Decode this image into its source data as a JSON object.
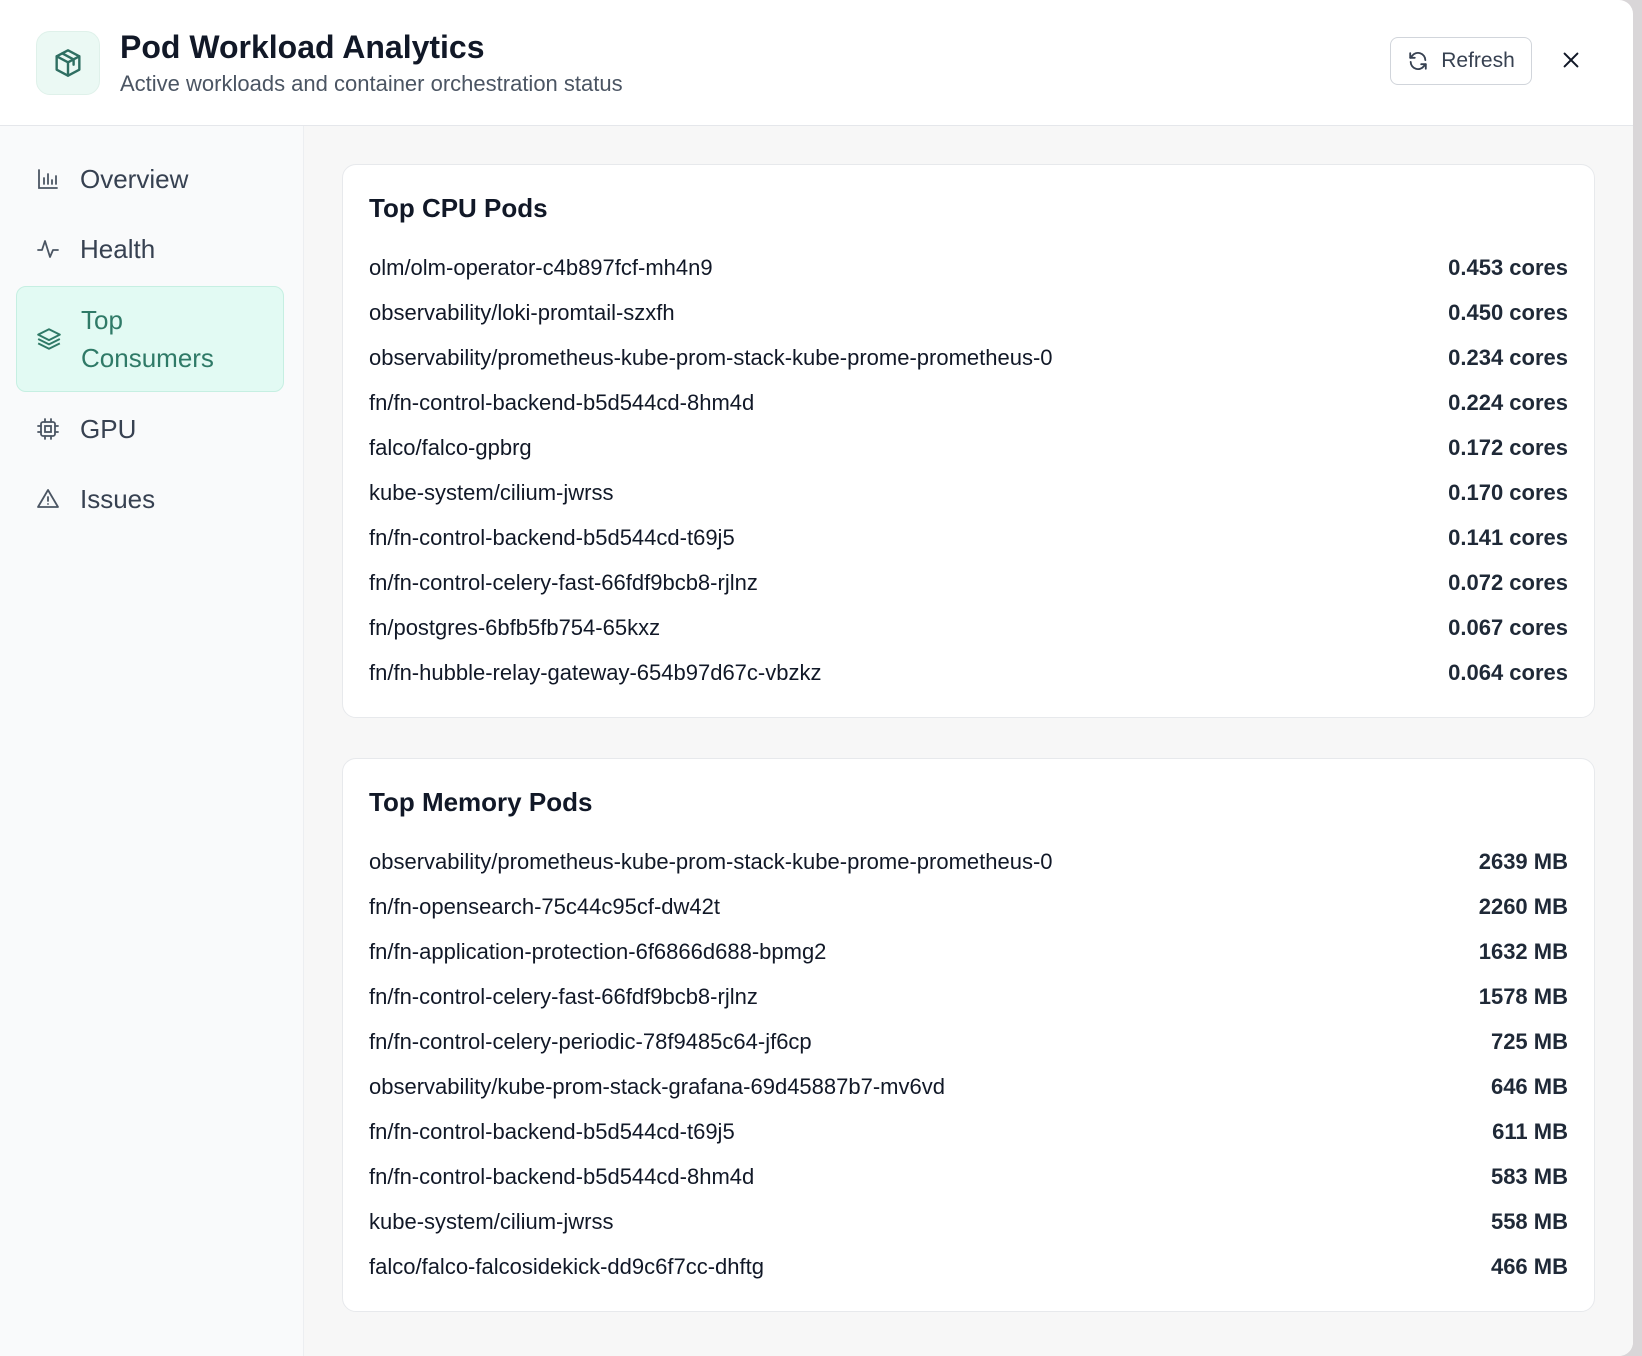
{
  "header": {
    "title": "Pod Workload Analytics",
    "subtitle": "Active workloads and container orchestration status",
    "icon": "package-icon",
    "refresh_label": "Refresh"
  },
  "sidebar": {
    "items": [
      {
        "label": "Overview",
        "icon": "bar-chart-icon",
        "active": false
      },
      {
        "label": "Health",
        "icon": "activity-icon",
        "active": false
      },
      {
        "label": "Top Consumers",
        "icon": "layers-icon",
        "active": true
      },
      {
        "label": "GPU",
        "icon": "cpu-chip-icon",
        "active": false
      },
      {
        "label": "Issues",
        "icon": "warning-triangle-icon",
        "active": false
      }
    ]
  },
  "cpu": {
    "title": "Top CPU Pods",
    "rows": [
      {
        "name": "olm/olm-operator-c4b897fcf-mh4n9",
        "value": "0.453 cores"
      },
      {
        "name": "observability/loki-promtail-szxfh",
        "value": "0.450 cores"
      },
      {
        "name": "observability/prometheus-kube-prom-stack-kube-prome-prometheus-0",
        "value": "0.234 cores"
      },
      {
        "name": "fn/fn-control-backend-b5d544cd-8hm4d",
        "value": "0.224 cores"
      },
      {
        "name": "falco/falco-gpbrg",
        "value": "0.172 cores"
      },
      {
        "name": "kube-system/cilium-jwrss",
        "value": "0.170 cores"
      },
      {
        "name": "fn/fn-control-backend-b5d544cd-t69j5",
        "value": "0.141 cores"
      },
      {
        "name": "fn/fn-control-celery-fast-66fdf9bcb8-rjlnz",
        "value": "0.072 cores"
      },
      {
        "name": "fn/postgres-6bfb5fb754-65kxz",
        "value": "0.067 cores"
      },
      {
        "name": "fn/fn-hubble-relay-gateway-654b97d67c-vbzkz",
        "value": "0.064 cores"
      }
    ]
  },
  "memory": {
    "title": "Top Memory Pods",
    "rows": [
      {
        "name": "observability/prometheus-kube-prom-stack-kube-prome-prometheus-0",
        "value": "2639 MB"
      },
      {
        "name": "fn/fn-opensearch-75c44c95cf-dw42t",
        "value": "2260 MB"
      },
      {
        "name": "fn/fn-application-protection-6f6866d688-bpmg2",
        "value": "1632 MB"
      },
      {
        "name": "fn/fn-control-celery-fast-66fdf9bcb8-rjlnz",
        "value": "1578 MB"
      },
      {
        "name": "fn/fn-control-celery-periodic-78f9485c64-jf6cp",
        "value": "725 MB"
      },
      {
        "name": "observability/kube-prom-stack-grafana-69d45887b7-mv6vd",
        "value": "646 MB"
      },
      {
        "name": "fn/fn-control-backend-b5d544cd-t69j5",
        "value": "611 MB"
      },
      {
        "name": "fn/fn-control-backend-b5d544cd-8hm4d",
        "value": "583 MB"
      },
      {
        "name": "kube-system/cilium-jwrss",
        "value": "558 MB"
      },
      {
        "name": "falco/falco-falcosidekick-dd9c6f7cc-dhftg",
        "value": "466 MB"
      }
    ]
  },
  "colors": {
    "accent": "#2f7a67",
    "active_bg": "#e2faf3"
  }
}
